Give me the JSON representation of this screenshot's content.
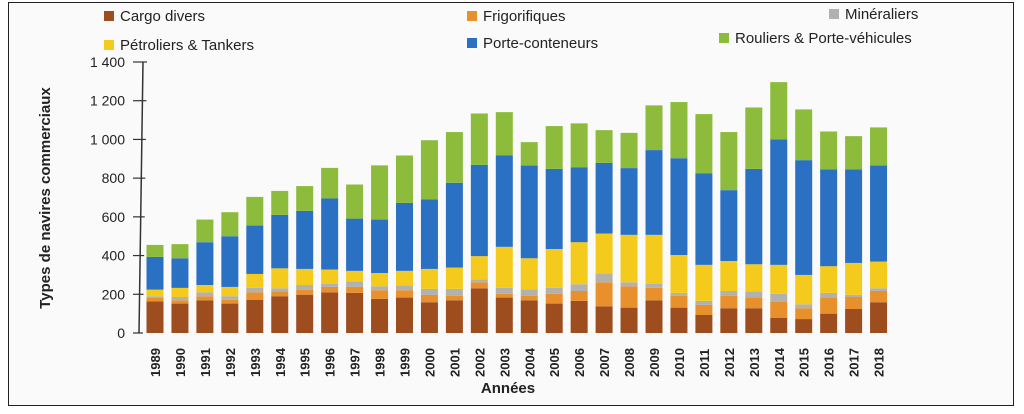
{
  "chart_data": {
    "type": "bar",
    "stacked": true,
    "title": "",
    "xlabel": "Années",
    "ylabel": "Types de navires commerciaux",
    "ylim": [
      0,
      1400
    ],
    "yticks": [
      "0",
      "200",
      "400",
      "600",
      "800",
      "1 000",
      "1 200",
      "1 400"
    ],
    "ytick_values": [
      0,
      200,
      400,
      600,
      800,
      1000,
      1200,
      1400
    ],
    "grid": false,
    "legend_position": "top",
    "categories": [
      "1989",
      "1990",
      "1991",
      "1992",
      "1993",
      "1994",
      "1995",
      "1996",
      "1997",
      "1998",
      "1999",
      "2000",
      "2001",
      "2002",
      "2003",
      "2004",
      "2005",
      "2006",
      "2007",
      "2008",
      "2009",
      "2010",
      "2011",
      "2012",
      "2013",
      "2014",
      "2015",
      "2016",
      "2017",
      "2018"
    ],
    "series": [
      {
        "name": "Cargo divers",
        "color": "#9e4e1e",
        "values": [
          164,
          152,
          169,
          152,
          172,
          190,
          198,
          210,
          207,
          176,
          183,
          159,
          169,
          231,
          183,
          169,
          152,
          166,
          138,
          131,
          169,
          131,
          93,
          128,
          128,
          79,
          72,
          100,
          124,
          159
        ]
      },
      {
        "name": "Frigorifiques",
        "color": "#e8912c",
        "values": [
          17,
          17,
          21,
          20,
          38,
          26,
          26,
          28,
          31,
          45,
          38,
          38,
          24,
          31,
          20,
          24,
          51,
          51,
          124,
          110,
          65,
          62,
          52,
          65,
          55,
          83,
          56,
          83,
          62,
          58
        ]
      },
      {
        "name": "Minéraliers",
        "color": "#b3b1ad",
        "values": [
          9,
          17,
          20,
          18,
          24,
          15,
          24,
          17,
          29,
          20,
          24,
          31,
          35,
          14,
          30,
          33,
          31,
          35,
          45,
          21,
          21,
          14,
          21,
          24,
          31,
          41,
          20,
          24,
          11,
          14
        ]
      },
      {
        "name": "Pétroliers & Tankers",
        "color": "#f4cb1c",
        "values": [
          34,
          47,
          38,
          48,
          71,
          103,
          83,
          73,
          54,
          69,
          76,
          103,
          110,
          121,
          212,
          160,
          200,
          217,
          207,
          245,
          252,
          196,
          186,
          155,
          141,
          149,
          152,
          138,
          165,
          138
        ]
      },
      {
        "name": "Porte-conteneurs",
        "color": "#2b71c3",
        "values": [
          169,
          153,
          221,
          262,
          250,
          276,
          300,
          367,
          270,
          276,
          351,
          359,
          438,
          472,
          472,
          479,
          414,
          386,
          365,
          345,
          438,
          500,
          472,
          366,
          493,
          648,
          593,
          500,
          483,
          496
        ]
      },
      {
        "name": "Rouliers & Porte-véhicules",
        "color": "#8dbb3b",
        "values": [
          62,
          73,
          117,
          124,
          148,
          124,
          128,
          158,
          176,
          280,
          245,
          306,
          262,
          265,
          224,
          121,
          221,
          228,
          169,
          182,
          231,
          290,
          307,
          300,
          317,
          296,
          262,
          196,
          172,
          197
        ]
      }
    ]
  }
}
